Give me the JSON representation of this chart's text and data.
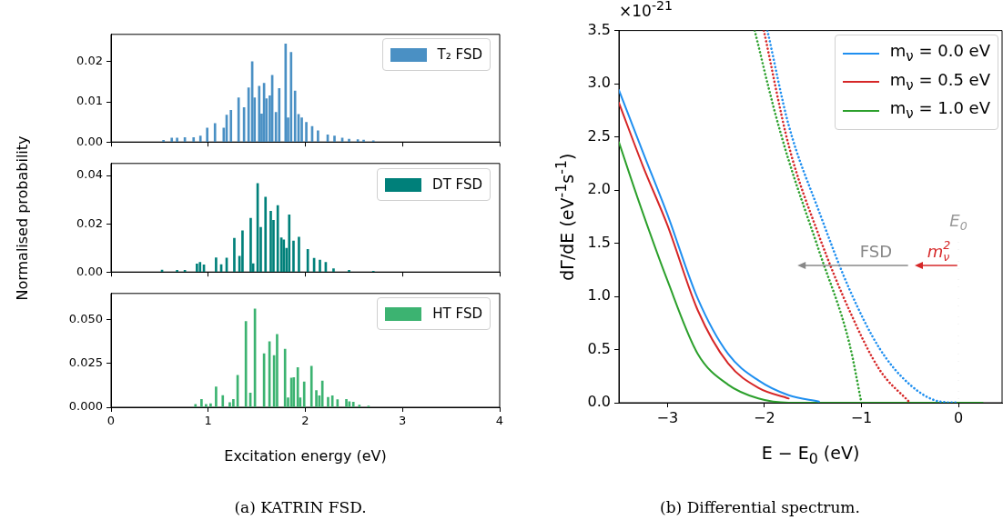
{
  "chart_data": [
    {
      "type": "bar",
      "xlim": [
        0,
        4
      ],
      "xticks": [
        0,
        1,
        2,
        3,
        4
      ],
      "ylim": [
        0,
        0.0268
      ],
      "yticks": [
        {
          "value": 0,
          "label": "0.00"
        },
        {
          "value": 0.01,
          "label": "0.01"
        },
        {
          "value": 0.02,
          "label": "0.02"
        }
      ],
      "tick_labels": "y",
      "legend": "top right",
      "annotations": [
        "(a) KATRIN FSD."
      ],
      "series": [
        {
          "name": "T₂ FSD",
          "color": "#4a90c4",
          "x": [
            0.54,
            0.625,
            0.68,
            0.76,
            0.85,
            0.92,
            0.99,
            1.07,
            1.16,
            1.19,
            1.234,
            1.313,
            1.369,
            1.416,
            1.453,
            1.478,
            1.525,
            1.55,
            1.575,
            1.6,
            1.634,
            1.659,
            1.697,
            1.731,
            1.797,
            1.822,
            1.853,
            1.894,
            1.93,
            1.963,
            2.01,
            2.07,
            2.13,
            2.23,
            2.3,
            2.38,
            2.45,
            2.54,
            2.6,
            2.7
          ],
          "values": [
            0.0004,
            0.001,
            0.001,
            0.0011,
            0.0011,
            0.0015,
            0.0035,
            0.0046,
            0.0035,
            0.0067,
            0.0079,
            0.011,
            0.0086,
            0.0135,
            0.02,
            0.011,
            0.0139,
            0.007,
            0.0146,
            0.0108,
            0.0115,
            0.0166,
            0.0074,
            0.0133,
            0.0244,
            0.006,
            0.0223,
            0.0127,
            0.0069,
            0.006,
            0.0049,
            0.0039,
            0.0028,
            0.0018,
            0.0015,
            0.001,
            0.0007,
            0.0006,
            0.0005,
            0.0003
          ]
        }
      ]
    },
    {
      "type": "bar",
      "xlim": [
        0,
        4
      ],
      "xticks": [
        0,
        1,
        2,
        3,
        4
      ],
      "ylim": [
        0,
        0.045
      ],
      "yticks": [
        {
          "value": 0,
          "label": "0.00"
        },
        {
          "value": 0.02,
          "label": "0.02"
        },
        {
          "value": 0.04,
          "label": "0.04"
        }
      ],
      "tick_labels": "y",
      "legend": "top right",
      "ylabel": "Normalised probability",
      "series": [
        {
          "name": "DT FSD",
          "color": "#00807a",
          "x": [
            0.525,
            0.68,
            0.76,
            0.884,
            0.916,
            0.956,
            1.081,
            1.134,
            1.19,
            1.269,
            1.322,
            1.353,
            1.4375,
            1.463,
            1.509,
            1.541,
            1.59,
            1.644,
            1.672,
            1.716,
            1.753,
            1.778,
            1.806,
            1.834,
            1.878,
            1.934,
            2.025,
            2.09,
            2.15,
            2.21,
            2.29,
            2.45,
            2.7
          ],
          "values": [
            0.0008,
            0.0007,
            0.0007,
            0.0033,
            0.004,
            0.003,
            0.0059,
            0.0031,
            0.0058,
            0.014,
            0.0065,
            0.0171,
            0.0223,
            0.0034,
            0.0367,
            0.0185,
            0.031,
            0.0252,
            0.0214,
            0.0276,
            0.0142,
            0.0133,
            0.0098,
            0.0237,
            0.0129,
            0.0145,
            0.0094,
            0.0057,
            0.0049,
            0.004,
            0.0014,
            0.0007,
            0.0003
          ]
        }
      ]
    },
    {
      "type": "bar",
      "xlim": [
        0,
        4
      ],
      "xticks": [
        0,
        1,
        2,
        3,
        4
      ],
      "ylim": [
        0,
        0.065
      ],
      "yticks": [
        {
          "value": 0,
          "label": "0.000"
        },
        {
          "value": 0.025,
          "label": "0.025"
        },
        {
          "value": 0.05,
          "label": "0.050"
        }
      ],
      "legend": "top right",
      "xlabel": "Excitation energy (eV)",
      "series": [
        {
          "name": "HT FSD",
          "color": "#3cb371",
          "x": [
            0.869,
            0.931,
            0.978,
            1.025,
            1.081,
            1.15,
            1.222,
            1.259,
            1.303,
            1.388,
            1.434,
            1.481,
            1.575,
            1.631,
            1.678,
            1.709,
            1.791,
            1.822,
            1.856,
            1.881,
            1.922,
            1.947,
            1.988,
            2.063,
            2.113,
            2.144,
            2.175,
            2.234,
            2.278,
            2.331,
            2.422,
            2.453,
            2.494,
            2.556,
            2.65
          ],
          "values": [
            0.0017,
            0.0045,
            0.0017,
            0.002,
            0.0116,
            0.0067,
            0.0027,
            0.0045,
            0.0182,
            0.049,
            0.0082,
            0.0562,
            0.0306,
            0.0375,
            0.0295,
            0.0416,
            0.0332,
            0.0054,
            0.0167,
            0.017,
            0.0227,
            0.0054,
            0.0145,
            0.0234,
            0.0096,
            0.0066,
            0.015,
            0.0057,
            0.0066,
            0.0044,
            0.0045,
            0.0032,
            0.0029,
            0.0013,
            0.0008
          ]
        }
      ]
    },
    {
      "type": "line",
      "xlim": [
        -3.5,
        0.45
      ],
      "xticks": [
        {
          "value": -3,
          "label": "−3"
        },
        {
          "value": -2,
          "label": "−2"
        },
        {
          "value": -1,
          "label": "−1"
        },
        0
      ],
      "ylim": [
        0,
        3.5
      ],
      "yticks": [
        {
          "value": 0,
          "label": "0.0"
        },
        {
          "value": 0.5,
          "label": "0.5"
        },
        {
          "value": 1,
          "label": "1.0"
        },
        {
          "value": 1.5,
          "label": "1.5"
        },
        {
          "value": 2,
          "label": "2.0"
        },
        {
          "value": 2.5,
          "label": "2.5"
        },
        {
          "value": 3,
          "label": "3.0"
        },
        {
          "value": 3.5,
          "label": "3.5"
        }
      ],
      "xlabel": "E − E$_{0}$ (eV)",
      "ylabel": "dΓ/dE (eV$^{-1}$s$^{-1}$)",
      "legend": "top right",
      "marker": "none",
      "ref_lines": [
        {
          "axis": "x",
          "value": 0,
          "label": "E$_{0}$",
          "color": "#c0c0c0",
          "line_style": "dotted"
        }
      ],
      "annotations": [
        "×10$^{-21}$",
        "FSD",
        "m$_{ν}$$^{2}$",
        "(b) Differential spectrum."
      ],
      "series": [
        {
          "name": "m$_{ν}$ = 0.0 eV",
          "color": "#1f8ff0",
          "line_style": "solid",
          "x": [
            -3.5,
            -3.25,
            -3.0,
            -2.6875,
            -2.375,
            -2.0625,
            -1.75,
            -1.4375
          ],
          "values": [
            2.94,
            2.35,
            1.77,
            0.98,
            0.46,
            0.21,
            0.07,
            0.01
          ]
        },
        {
          "name": "m$_{ν}$ = 0.5 eV",
          "color": "#d62728",
          "line_style": "solid",
          "x": [
            -3.5,
            -3.25,
            -3.0,
            -2.6875,
            -2.375,
            -2.0625,
            -1.75
          ],
          "values": [
            2.82,
            2.22,
            1.67,
            0.87,
            0.37,
            0.14,
            0.04
          ]
        },
        {
          "name": "m$_{ν}$ = 1.0 eV",
          "color": "#2ca02c",
          "line_style": "solid",
          "x": [
            -3.5,
            -3.3125,
            -3.0,
            -2.6875,
            -2.375,
            -2.0625,
            -1.75,
            0.25
          ],
          "values": [
            2.45,
            1.94,
            1.15,
            0.46,
            0.17,
            0.04,
            0,
            0
          ]
        },
        {
          "color": "#1f8ff0",
          "line_style": "dotted",
          "x": [
            -1.969,
            -1.75,
            -1.4375,
            -1.125,
            -0.8125,
            -0.5,
            -0.1875,
            0
          ],
          "values": [
            3.5,
            2.61,
            1.8,
            1.07,
            0.51,
            0.17,
            0.01,
            0
          ]
        },
        {
          "color": "#d62728",
          "line_style": "dotted",
          "x": [
            -2.006,
            -1.75,
            -1.4375,
            -1.125,
            -0.8125,
            -0.5
          ],
          "values": [
            3.5,
            2.42,
            1.57,
            0.87,
            0.31,
            0
          ]
        },
        {
          "color": "#2ca02c",
          "line_style": "dotted",
          "x": [
            -2.1,
            -1.906,
            -1.75,
            -1.4375,
            -1.125,
            -1.0
          ],
          "values": [
            3.5,
            2.78,
            2.28,
            1.43,
            0.56,
            0
          ]
        }
      ]
    }
  ]
}
